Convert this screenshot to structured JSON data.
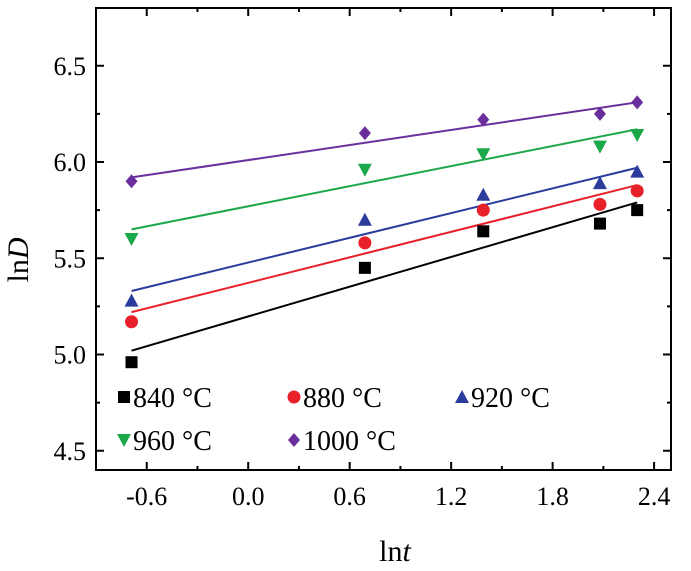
{
  "chart_data": {
    "type": "scatter",
    "xlabel": {
      "prefix": "ln",
      "var": "t"
    },
    "ylabel": {
      "prefix": "ln",
      "var": "D"
    },
    "xlim": [
      -0.9,
      2.5
    ],
    "ylim": [
      4.4,
      6.8
    ],
    "x_ticks": [
      -0.6,
      0.0,
      0.6,
      1.2,
      1.8,
      2.4
    ],
    "x_tick_labels": [
      "-0.6",
      "0.0",
      "0.6",
      "1.2",
      "1.8",
      "2.4"
    ],
    "y_ticks": [
      4.5,
      5.0,
      5.5,
      6.0,
      6.5
    ],
    "y_tick_labels": [
      "4.5",
      "5.0",
      "5.5",
      "6.0",
      "6.5"
    ],
    "grid": false,
    "legend_position": "bottom-left",
    "series": [
      {
        "name": "840 °C",
        "color": "#000000",
        "marker": "square",
        "x": [
          -0.69,
          0.69,
          1.39,
          2.08,
          2.3
        ],
        "y": [
          4.96,
          5.45,
          5.64,
          5.68,
          5.75
        ],
        "fit": {
          "x": [
            -0.69,
            2.3
          ],
          "y": [
            5.02,
            5.79
          ]
        }
      },
      {
        "name": "880 °C",
        "color": "#e8202a",
        "marker": "circle",
        "x": [
          -0.69,
          0.69,
          1.39,
          2.08,
          2.3
        ],
        "y": [
          5.17,
          5.58,
          5.75,
          5.78,
          5.85
        ],
        "fit": {
          "x": [
            -0.69,
            2.3
          ],
          "y": [
            5.22,
            5.88
          ]
        }
      },
      {
        "name": "920 °C",
        "color": "#2b3c9c",
        "marker": "triangle-up",
        "x": [
          -0.69,
          0.69,
          1.39,
          2.08,
          2.3
        ],
        "y": [
          5.28,
          5.7,
          5.83,
          5.89,
          5.95
        ],
        "fit": {
          "x": [
            -0.69,
            2.3
          ],
          "y": [
            5.33,
            5.97
          ]
        }
      },
      {
        "name": "960 °C",
        "color": "#1ca84a",
        "marker": "triangle-down",
        "x": [
          -0.69,
          0.69,
          1.39,
          2.08,
          2.3
        ],
        "y": [
          5.6,
          5.96,
          6.04,
          6.08,
          6.14
        ],
        "fit": {
          "x": [
            -0.69,
            2.3
          ],
          "y": [
            5.65,
            6.17
          ]
        }
      },
      {
        "name": "1000 °C",
        "color": "#6a2f9c",
        "marker": "diamond",
        "x": [
          -0.69,
          0.69,
          1.39,
          2.08,
          2.3
        ],
        "y": [
          5.9,
          6.15,
          6.22,
          6.25,
          6.31
        ],
        "fit": {
          "x": [
            -0.69,
            2.3
          ],
          "y": [
            5.92,
            6.31
          ]
        }
      }
    ]
  }
}
